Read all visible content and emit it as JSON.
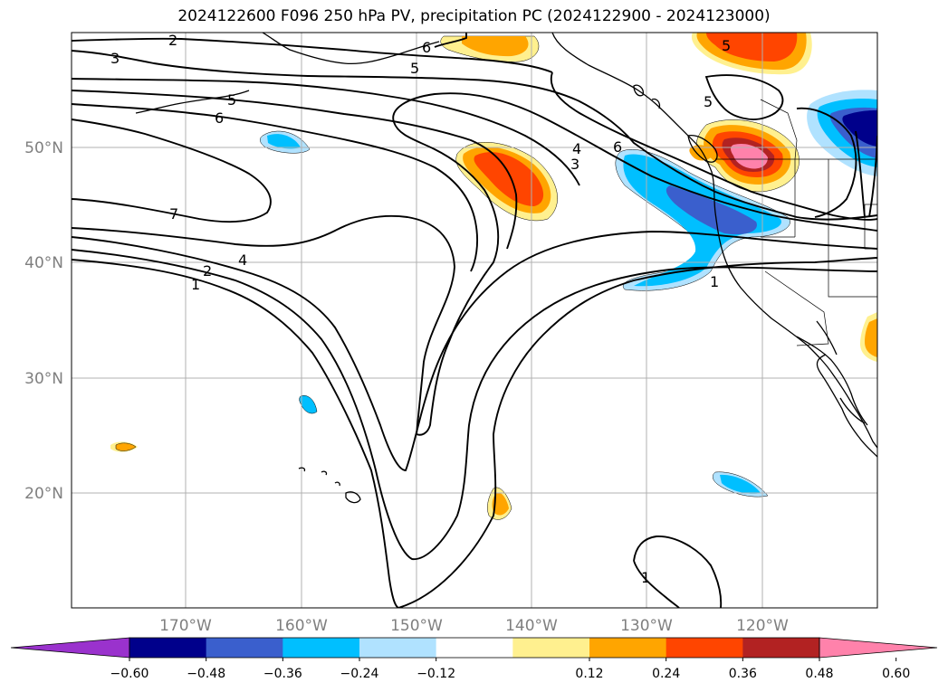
{
  "title": "2024122600 F096 250 hPa PV, precipitation PC (2024122900 - 2024123000)",
  "lat_labels": [
    "50°N",
    "40°N",
    "30°N",
    "20°N"
  ],
  "lon_labels": [
    "170°W",
    "160°W",
    "150°W",
    "140°W",
    "130°W",
    "120°W"
  ],
  "contour_labels": [
    "2",
    "3",
    "6",
    "5",
    "5",
    "6",
    "5",
    "7",
    "4",
    "2",
    "1",
    "4",
    "3",
    "6",
    "1",
    "1",
    "5"
  ],
  "colorbar": {
    "ticks": [
      "−0.60",
      "−0.48",
      "−0.36",
      "−0.24",
      "−0.12",
      "0.12",
      "0.24",
      "0.36",
      "0.48",
      "0.60"
    ],
    "colors": [
      "#9a32cd",
      "#00008b",
      "#3a5fcd",
      "#00bfff",
      "#b0e2ff",
      "#ffffff",
      "#fff08f",
      "#ffa500",
      "#ff4500",
      "#b22222",
      "#ff82ab"
    ]
  },
  "colors": {
    "neg_strong": "#00008b",
    "neg_mid": "#3a5fcd",
    "neg": "#00bfff",
    "neg_light": "#b0e2ff",
    "pos_light": "#fff08f",
    "pos": "#ffa500",
    "pos_mid": "#ff4500",
    "pos_strong": "#b22222",
    "pos_max": "#ff82ab"
  }
}
